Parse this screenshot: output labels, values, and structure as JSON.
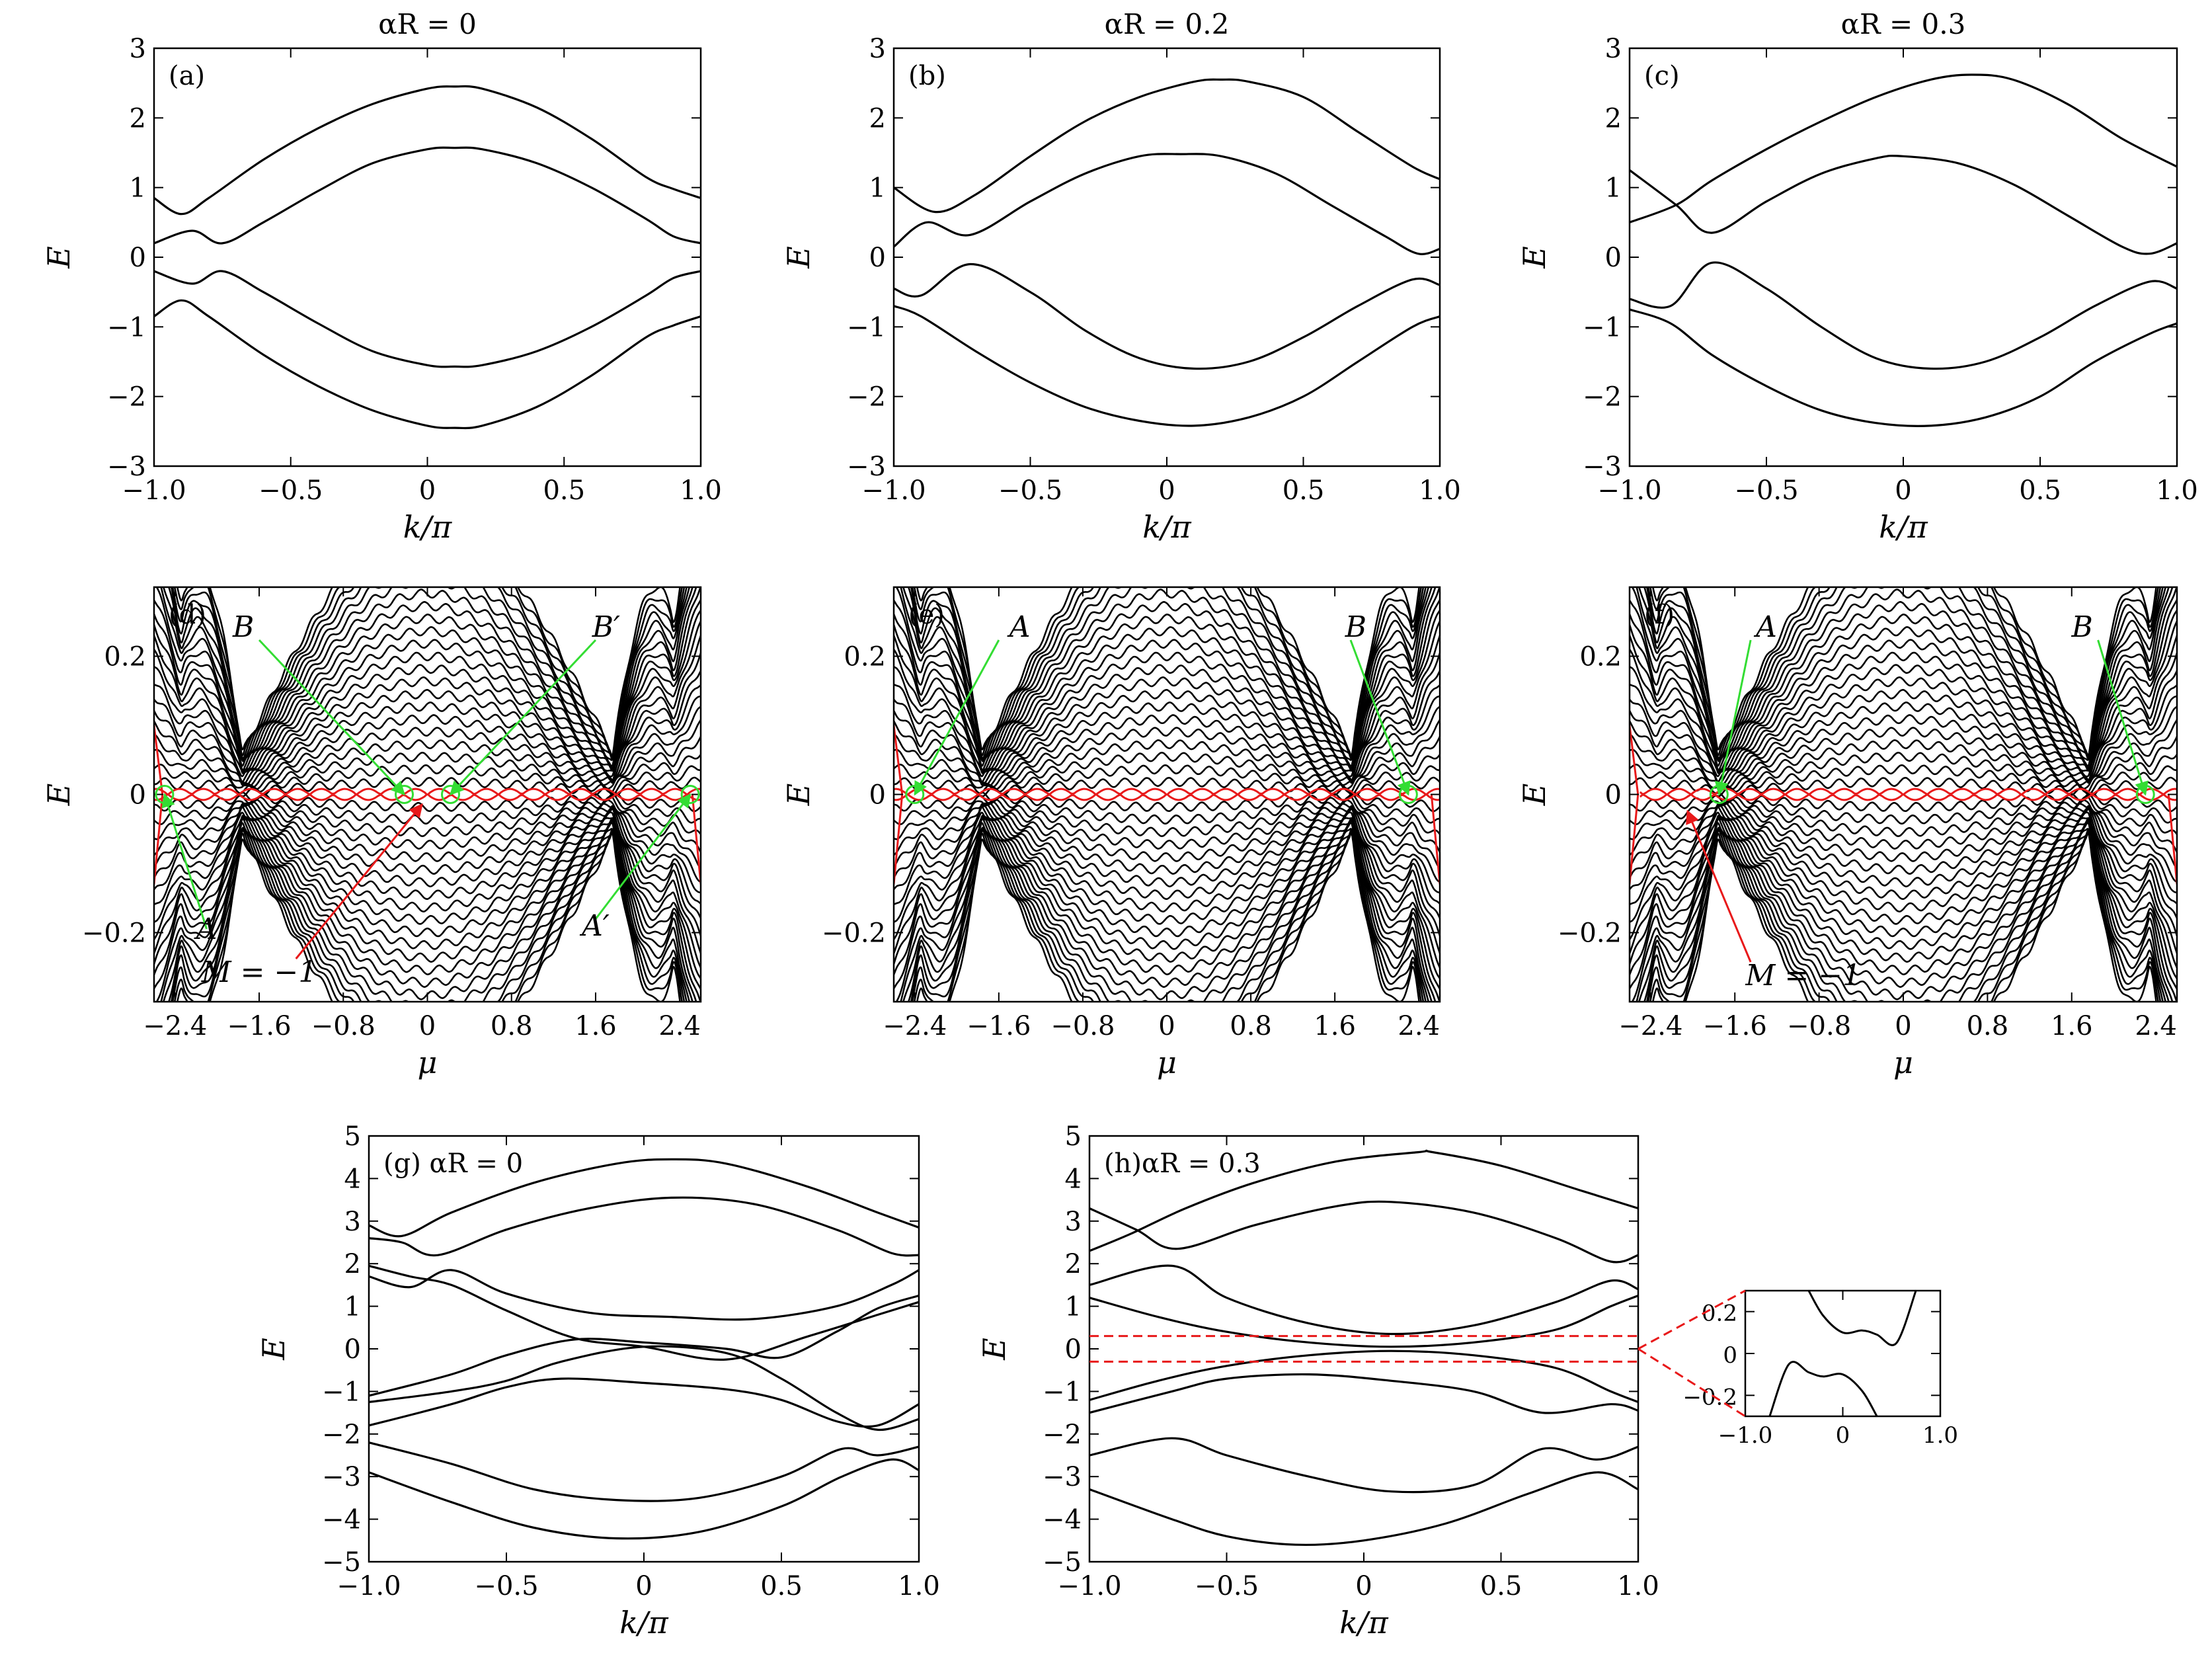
{
  "colors": {
    "axis": "#000000",
    "band": "#000000",
    "majorana": "#e8191a",
    "annotation": "#33dd33",
    "inset_box": "#e8191a"
  },
  "chart_data": [
    {
      "id": "a",
      "type": "line",
      "panel_label": "(a)",
      "title": "αR = 0",
      "xlabel": "k/π",
      "ylabel": "E",
      "xlim": [
        -1,
        1
      ],
      "ylim": [
        -3,
        3
      ],
      "xticks": [
        "−1.0",
        "−0.5",
        "0",
        "0.5",
        "1.0"
      ],
      "yticks": [
        "3",
        "2",
        "1",
        "0",
        "−1",
        "−2",
        "−3"
      ],
      "series": [
        {
          "x": [
            -1,
            -0.9,
            -0.8,
            -0.6,
            -0.4,
            -0.2,
            0,
            0.1,
            0.2,
            0.4,
            0.6,
            0.8,
            0.9,
            1
          ],
          "values": [
            0.85,
            0.62,
            0.85,
            1.4,
            1.85,
            2.2,
            2.42,
            2.45,
            2.42,
            2.15,
            1.7,
            1.15,
            0.98,
            0.85
          ]
        },
        {
          "x": [
            -1,
            -0.86,
            -0.75,
            -0.6,
            -0.4,
            -0.2,
            0,
            0.1,
            0.2,
            0.4,
            0.6,
            0.8,
            0.9,
            1
          ],
          "values": [
            0.2,
            0.38,
            0.2,
            0.5,
            0.95,
            1.35,
            1.55,
            1.57,
            1.55,
            1.35,
            1.0,
            0.55,
            0.3,
            0.2
          ]
        },
        {
          "x": [
            -1,
            -0.86,
            -0.75,
            -0.6,
            -0.4,
            -0.2,
            0,
            0.1,
            0.2,
            0.4,
            0.6,
            0.8,
            0.9,
            1
          ],
          "values": [
            -0.2,
            -0.38,
            -0.2,
            -0.5,
            -0.95,
            -1.35,
            -1.55,
            -1.57,
            -1.55,
            -1.35,
            -1.0,
            -0.55,
            -0.3,
            -0.2
          ]
        },
        {
          "x": [
            -1,
            -0.9,
            -0.8,
            -0.6,
            -0.4,
            -0.2,
            0,
            0.1,
            0.2,
            0.4,
            0.6,
            0.8,
            0.9,
            1
          ],
          "values": [
            -0.85,
            -0.62,
            -0.85,
            -1.4,
            -1.85,
            -2.2,
            -2.42,
            -2.45,
            -2.42,
            -2.15,
            -1.7,
            -1.15,
            -0.98,
            -0.85
          ]
        }
      ]
    },
    {
      "id": "b",
      "type": "line",
      "panel_label": "(b)",
      "title": "αR = 0.2",
      "xlabel": "k/π",
      "ylabel": "E",
      "xlim": [
        -1,
        1
      ],
      "ylim": [
        -3,
        3
      ],
      "xticks": [
        "−1.0",
        "−0.5",
        "0",
        "0.5",
        "1.0"
      ],
      "yticks": [
        "3",
        "2",
        "1",
        "0",
        "−1",
        "−2",
        "−3"
      ],
      "series": [
        {
          "x": [
            -1,
            -0.85,
            -0.7,
            -0.5,
            -0.3,
            -0.1,
            0.1,
            0.2,
            0.3,
            0.5,
            0.7,
            0.9,
            1
          ],
          "values": [
            1.0,
            0.65,
            0.9,
            1.45,
            1.95,
            2.3,
            2.52,
            2.55,
            2.52,
            2.3,
            1.8,
            1.3,
            1.12
          ]
        },
        {
          "x": [
            -1,
            -0.88,
            -0.72,
            -0.5,
            -0.3,
            -0.1,
            0.05,
            0.2,
            0.4,
            0.6,
            0.8,
            0.92,
            1
          ],
          "values": [
            0.15,
            0.5,
            0.32,
            0.8,
            1.2,
            1.45,
            1.48,
            1.45,
            1.2,
            0.75,
            0.3,
            0.05,
            0.12
          ]
        },
        {
          "x": [
            -1,
            -0.9,
            -0.72,
            -0.5,
            -0.3,
            -0.1,
            0.1,
            0.3,
            0.5,
            0.7,
            0.9,
            1
          ],
          "values": [
            -0.45,
            -0.55,
            -0.1,
            -0.5,
            -1.05,
            -1.45,
            -1.6,
            -1.5,
            -1.15,
            -0.7,
            -0.32,
            -0.4
          ]
        },
        {
          "x": [
            -1,
            -0.9,
            -0.7,
            -0.5,
            -0.3,
            -0.1,
            0.1,
            0.3,
            0.5,
            0.7,
            0.9,
            1
          ],
          "values": [
            -0.7,
            -0.85,
            -1.35,
            -1.8,
            -2.15,
            -2.35,
            -2.42,
            -2.3,
            -2.0,
            -1.5,
            -1.0,
            -0.85
          ]
        }
      ]
    },
    {
      "id": "c",
      "type": "line",
      "panel_label": "(c)",
      "title": "αR = 0.3",
      "xlabel": "k/π",
      "ylabel": "E",
      "xlim": [
        -1,
        1
      ],
      "ylim": [
        -3,
        3
      ],
      "xticks": [
        "−1.0",
        "−0.5",
        "0",
        "0.5",
        "1.0"
      ],
      "yticks": [
        "3",
        "2",
        "1",
        "0",
        "−1",
        "−2",
        "−3"
      ],
      "series": [
        {
          "x": [
            -1,
            -0.83,
            -0.7,
            -0.5,
            -0.3,
            -0.1,
            0.1,
            0.25,
            0.4,
            0.6,
            0.8,
            1
          ],
          "values": [
            0.5,
            0.75,
            1.1,
            1.55,
            1.95,
            2.3,
            2.55,
            2.62,
            2.55,
            2.2,
            1.7,
            1.3
          ]
        },
        {
          "x": [
            -1,
            -0.83,
            -0.7,
            -0.5,
            -0.3,
            -0.1,
            0,
            0.2,
            0.4,
            0.6,
            0.8,
            0.9,
            1
          ],
          "values": [
            1.25,
            0.75,
            0.35,
            0.8,
            1.2,
            1.42,
            1.45,
            1.35,
            1.05,
            0.6,
            0.15,
            0.05,
            0.2
          ]
        },
        {
          "x": [
            -1,
            -0.85,
            -0.7,
            -0.5,
            -0.3,
            -0.1,
            0.1,
            0.3,
            0.5,
            0.7,
            0.9,
            1
          ],
          "values": [
            -0.6,
            -0.7,
            -0.08,
            -0.45,
            -1.0,
            -1.45,
            -1.6,
            -1.5,
            -1.15,
            -0.7,
            -0.35,
            -0.45
          ]
        },
        {
          "x": [
            -1,
            -0.85,
            -0.7,
            -0.5,
            -0.3,
            -0.1,
            0.1,
            0.3,
            0.5,
            0.7,
            0.9,
            1
          ],
          "values": [
            -0.75,
            -0.95,
            -1.4,
            -1.85,
            -2.2,
            -2.38,
            -2.42,
            -2.3,
            -2.0,
            -1.5,
            -1.1,
            -0.95
          ]
        }
      ]
    },
    {
      "id": "d",
      "type": "line",
      "panel_label": "(d)",
      "xlabel": "μ",
      "ylabel": "E",
      "xlim": [
        -2.6,
        2.6
      ],
      "ylim": [
        -0.3,
        0.3
      ],
      "xticks": [
        "−2.4",
        "−1.6",
        "−0.8",
        "0",
        "0.8",
        "1.6",
        "2.4"
      ],
      "yticks": [
        "0.2",
        "0",
        "−0.2"
      ],
      "gap_edges": [
        -2.5,
        -1.75,
        1.75,
        2.5
      ],
      "center_features": [
        -0.22,
        0.22
      ],
      "markers": [
        {
          "label": "A",
          "x": -2.5
        },
        {
          "label": "B",
          "x": -0.22
        },
        {
          "label": "B′",
          "x": 0.22
        },
        {
          "label": "A′",
          "x": 2.5
        }
      ],
      "annotations": [
        "A",
        "B",
        "B′",
        "A′",
        "M = −1"
      ]
    },
    {
      "id": "e",
      "type": "line",
      "panel_label": "(e)",
      "xlabel": "μ",
      "ylabel": "E",
      "xlim": [
        -2.6,
        2.6
      ],
      "ylim": [
        -0.3,
        0.3
      ],
      "xticks": [
        "−2.4",
        "−1.6",
        "−0.8",
        "0",
        "0.8",
        "1.6",
        "2.4"
      ],
      "yticks": [
        "0.2",
        "0",
        "−0.2"
      ],
      "gap_edges": [
        -2.4,
        -1.75,
        1.75,
        2.3
      ],
      "markers": [
        {
          "label": "A",
          "x": -2.4
        },
        {
          "label": "B",
          "x": 2.3
        }
      ],
      "annotations": [
        "A",
        "B"
      ]
    },
    {
      "id": "f",
      "type": "line",
      "panel_label": "(f)",
      "xlabel": "μ",
      "ylabel": "E",
      "xlim": [
        -2.6,
        2.6
      ],
      "ylim": [
        -0.3,
        0.3
      ],
      "xticks": [
        "−2.4",
        "−1.6",
        "−0.8",
        "0",
        "0.8",
        "1.6",
        "2.4"
      ],
      "yticks": [
        "0.2",
        "0",
        "−0.2"
      ],
      "gap_edges": [
        -1.75,
        -1.75,
        1.75,
        2.3
      ],
      "markers": [
        {
          "label": "A",
          "x": -1.75
        },
        {
          "label": "B",
          "x": 2.3
        }
      ],
      "annotations": [
        "A",
        "B",
        "M = −1"
      ]
    },
    {
      "id": "g",
      "type": "line",
      "panel_label": "(g) αR = 0",
      "xlabel": "k/π",
      "ylabel": "E",
      "xlim": [
        -1,
        1
      ],
      "ylim": [
        -5,
        5
      ],
      "xticks": [
        "−1.0",
        "−0.5",
        "0",
        "0.5",
        "1.0"
      ],
      "yticks": [
        "5",
        "4",
        "3",
        "2",
        "1",
        "0",
        "−1",
        "−2",
        "−3",
        "−4",
        "−5"
      ],
      "series": [
        {
          "x": [
            -1,
            -0.88,
            -0.7,
            -0.4,
            -0.1,
            0.1,
            0.3,
            0.6,
            0.85,
            1
          ],
          "values": [
            2.9,
            2.65,
            3.2,
            3.9,
            4.35,
            4.45,
            4.35,
            3.8,
            3.2,
            2.85
          ]
        },
        {
          "x": [
            -1,
            -0.88,
            -0.75,
            -0.5,
            -0.2,
            0.1,
            0.4,
            0.7,
            0.9,
            1
          ],
          "values": [
            2.6,
            2.5,
            2.2,
            2.8,
            3.3,
            3.55,
            3.4,
            2.8,
            2.25,
            2.2
          ]
        },
        {
          "x": [
            -1,
            -0.85,
            -0.7,
            -0.5,
            -0.2,
            0.1,
            0.4,
            0.7,
            0.9,
            1
          ],
          "values": [
            1.7,
            1.45,
            1.85,
            1.3,
            0.85,
            0.75,
            0.7,
            1.0,
            1.5,
            1.85
          ]
        },
        {
          "x": [
            -1,
            -0.85,
            -0.7,
            -0.5,
            -0.25,
            0,
            0.3,
            0.6,
            0.85,
            1
          ],
          "values": [
            1.95,
            1.7,
            1.5,
            0.9,
            0.25,
            0.05,
            -0.25,
            0.3,
            0.8,
            1.1
          ]
        },
        {
          "x": [
            -1,
            -0.7,
            -0.5,
            -0.25,
            0,
            0.3,
            0.5,
            0.7,
            0.85,
            1
          ],
          "values": [
            -1.1,
            -0.6,
            -0.15,
            0.22,
            0.15,
            0.0,
            -0.2,
            0.4,
            0.95,
            1.25
          ]
        },
        {
          "x": [
            -1,
            -0.7,
            -0.5,
            -0.3,
            0,
            0.3,
            0.5,
            0.7,
            0.85,
            1
          ],
          "values": [
            -1.8,
            -1.3,
            -0.9,
            -0.7,
            -0.8,
            -0.95,
            -1.2,
            -1.7,
            -1.8,
            -1.3
          ]
        },
        {
          "x": [
            -1,
            -0.7,
            -0.5,
            -0.3,
            0,
            0.3,
            0.5,
            0.7,
            0.85,
            1
          ],
          "values": [
            -1.25,
            -1.0,
            -0.75,
            -0.3,
            0.05,
            -0.1,
            -0.7,
            -1.5,
            -1.9,
            -1.65
          ]
        },
        {
          "x": [
            -1,
            -0.7,
            -0.4,
            -0.1,
            0.2,
            0.5,
            0.72,
            0.85,
            1
          ],
          "values": [
            -2.2,
            -2.7,
            -3.3,
            -3.55,
            -3.5,
            -3.0,
            -2.35,
            -2.5,
            -2.3
          ]
        },
        {
          "x": [
            -1,
            -0.7,
            -0.4,
            -0.1,
            0.2,
            0.5,
            0.72,
            0.9,
            1
          ],
          "values": [
            -2.9,
            -3.6,
            -4.2,
            -4.45,
            -4.3,
            -3.7,
            -3.0,
            -2.6,
            -2.85
          ]
        }
      ]
    },
    {
      "id": "h",
      "type": "line",
      "panel_label": "(h)αR = 0.3",
      "xlabel": "k/π",
      "ylabel": "E",
      "xlim": [
        -1,
        1
      ],
      "ylim": [
        -5,
        5
      ],
      "xticks": [
        "−1.0",
        "−0.5",
        "0",
        "0.5",
        "1.0"
      ],
      "yticks": [
        "5",
        "4",
        "3",
        "2",
        "1",
        "0",
        "−1",
        "−2",
        "−3",
        "−4",
        "−5"
      ],
      "series": [
        {
          "x": [
            -1,
            -0.85,
            -0.65,
            -0.4,
            -0.1,
            0.2,
            0.25,
            0.5,
            0.8,
            1
          ],
          "values": [
            2.3,
            2.7,
            3.3,
            3.9,
            4.4,
            4.62,
            4.62,
            4.3,
            3.7,
            3.3
          ]
        },
        {
          "x": [
            -1,
            -0.83,
            -0.68,
            -0.4,
            -0.1,
            0.1,
            0.4,
            0.7,
            0.9,
            1
          ],
          "values": [
            3.3,
            2.8,
            2.35,
            2.9,
            3.35,
            3.45,
            3.2,
            2.6,
            2.05,
            2.2
          ]
        },
        {
          "x": [
            -1,
            -0.7,
            -0.5,
            -0.2,
            0.1,
            0.4,
            0.7,
            0.9,
            1
          ],
          "values": [
            1.5,
            1.95,
            1.2,
            0.6,
            0.35,
            0.55,
            1.1,
            1.6,
            1.4
          ]
        },
        {
          "x": [
            -1,
            -0.75,
            -0.5,
            -0.2,
            0.1,
            0.4,
            0.7,
            0.9,
            1
          ],
          "values": [
            1.2,
            0.75,
            0.4,
            0.15,
            0.05,
            0.15,
            0.45,
            1.0,
            1.25
          ]
        },
        {
          "x": [
            -1,
            -0.75,
            -0.5,
            -0.2,
            0.1,
            0.4,
            0.7,
            0.9,
            1
          ],
          "values": [
            -1.2,
            -0.75,
            -0.4,
            -0.15,
            -0.05,
            -0.15,
            -0.45,
            -1.0,
            -1.25
          ]
        },
        {
          "x": [
            -1,
            -0.7,
            -0.5,
            -0.2,
            0.1,
            0.4,
            0.65,
            0.9,
            1
          ],
          "values": [
            -1.5,
            -1.0,
            -0.7,
            -0.6,
            -0.75,
            -1.0,
            -1.5,
            -1.3,
            -1.45
          ]
        },
        {
          "x": [
            -1,
            -0.7,
            -0.5,
            -0.2,
            0.1,
            0.4,
            0.65,
            0.85,
            1
          ],
          "values": [
            -2.5,
            -2.1,
            -2.5,
            -3.0,
            -3.35,
            -3.2,
            -2.35,
            -2.6,
            -2.3
          ]
        },
        {
          "x": [
            -1,
            -0.7,
            -0.5,
            -0.25,
            0,
            0.3,
            0.6,
            0.85,
            1
          ],
          "values": [
            -3.3,
            -4.0,
            -4.4,
            -4.6,
            -4.5,
            -4.1,
            -3.4,
            -2.9,
            -3.3
          ]
        }
      ],
      "inset": {
        "xlim": [
          -1,
          1
        ],
        "ylim": [
          -0.3,
          0.3
        ],
        "xticks": [
          "−1.0",
          "0",
          "1.0"
        ],
        "yticks": [
          "0.2",
          "0",
          "−0.2"
        ],
        "series": [
          {
            "x": [
              -0.35,
              -0.2,
              0,
              0.2,
              0.35,
              0.55,
              0.75
            ],
            "values": [
              0.3,
              0.18,
              0.1,
              0.11,
              0.09,
              0.05,
              0.3
            ]
          },
          {
            "x": [
              -0.75,
              -0.55,
              -0.35,
              -0.2,
              0,
              0.2,
              0.35
            ],
            "values": [
              -0.3,
              -0.05,
              -0.09,
              -0.11,
              -0.1,
              -0.18,
              -0.3
            ]
          }
        ]
      }
    }
  ]
}
